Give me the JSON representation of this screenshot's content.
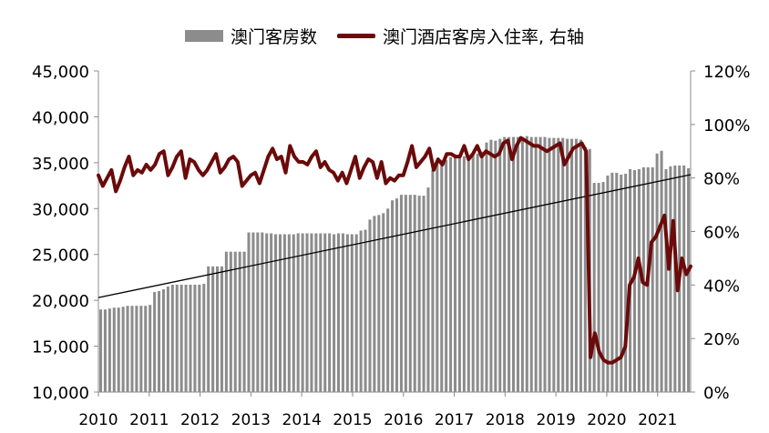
{
  "chart_data": {
    "type": "bar",
    "legend": [
      {
        "label": "澳门客房数",
        "color": "#8c8c8c"
      },
      {
        "label": "澳门酒店客房入住率, 右轴",
        "color": "#6b0a0a"
      }
    ],
    "x_ticks": [
      "2010",
      "2011",
      "2012",
      "2013",
      "2014",
      "2015",
      "2016",
      "2017",
      "2018",
      "2019",
      "2020",
      "2021"
    ],
    "y_left_ticks": [
      "10,000",
      "15,000",
      "20,000",
      "25,000",
      "30,000",
      "35,000",
      "40,000",
      "45,000"
    ],
    "y_right_ticks": [
      "0%",
      "20%",
      "40%",
      "60%",
      "80%",
      "100%",
      "120%"
    ],
    "ylim_left": [
      10000,
      45000
    ],
    "ylim_right": [
      0,
      120
    ],
    "x_range": [
      2010.0,
      2021.65
    ],
    "series": [
      {
        "name": "澳门客房数",
        "type": "bar",
        "axis": "left",
        "color": "#8c8c8c",
        "values": [
          19000,
          19000,
          19100,
          19200,
          19200,
          19300,
          19400,
          19400,
          19400,
          19400,
          19400,
          19500,
          20900,
          21000,
          21200,
          21500,
          21700,
          21700,
          21700,
          21700,
          21700,
          21700,
          21700,
          21800,
          23700,
          23700,
          23700,
          23700,
          25300,
          25300,
          25300,
          25300,
          25300,
          27400,
          27400,
          27400,
          27400,
          27300,
          27300,
          27200,
          27200,
          27200,
          27200,
          27200,
          27300,
          27300,
          27300,
          27300,
          27300,
          27300,
          27300,
          27300,
          27200,
          27300,
          27300,
          27200,
          27200,
          27200,
          27600,
          27700,
          28800,
          29200,
          29300,
          29500,
          30000,
          30900,
          31100,
          31500,
          31500,
          31500,
          31500,
          31400,
          31400,
          32300,
          34200,
          35000,
          35300,
          35300,
          35600,
          35700,
          35700,
          35700,
          35700,
          35800,
          36000,
          36200,
          37200,
          37500,
          37400,
          37600,
          37800,
          37800,
          37800,
          37800,
          37800,
          37900,
          37800,
          37800,
          37800,
          37800,
          37700,
          37700,
          37700,
          37700,
          37600,
          37600,
          37600,
          37500,
          36700,
          36500,
          32800,
          32800,
          32900,
          33600,
          33900,
          33900,
          33700,
          33800,
          34300,
          34200,
          34300,
          34500,
          34500,
          34500,
          36000,
          36300,
          34300,
          34600,
          34700,
          34700,
          34700,
          34400
        ]
      },
      {
        "name": "澳门酒店客房入住率, 右轴",
        "type": "line",
        "axis": "right",
        "color": "#6b0a0a",
        "values": [
          81,
          77,
          80,
          83,
          75,
          79,
          84,
          88,
          81,
          83,
          82,
          85,
          83,
          85,
          89,
          90,
          81,
          84,
          88,
          90,
          80,
          87,
          86,
          83,
          81,
          83,
          86,
          89,
          82,
          84,
          87,
          88,
          86,
          77,
          79,
          81,
          82,
          78,
          83,
          88,
          91,
          87,
          88,
          82,
          92,
          88,
          86,
          86,
          85,
          88,
          90,
          84,
          86,
          83,
          82,
          79,
          82,
          78,
          83,
          88,
          80,
          84,
          87,
          86,
          80,
          86,
          78,
          80,
          79,
          81,
          81,
          86,
          92,
          84,
          86,
          88,
          91,
          83,
          87,
          85,
          89,
          89,
          88,
          88,
          92,
          87,
          89,
          92,
          88,
          90,
          89,
          88,
          89,
          93,
          94,
          87,
          92,
          95,
          94,
          93,
          92,
          92,
          91,
          90,
          91,
          92,
          93,
          85,
          88,
          91,
          92,
          93,
          90,
          13,
          22,
          15,
          12,
          11,
          11,
          12,
          13,
          17,
          40,
          43,
          50,
          41,
          40,
          56,
          58,
          62,
          66,
          46,
          64,
          38,
          50,
          44,
          47
        ]
      },
      {
        "name": "",
        "type": "trendline",
        "axis": "left",
        "color": "#000000",
        "x": [
          2010.0,
          2021.65
        ],
        "values": [
          20300,
          33700
        ]
      }
    ],
    "grid": false
  }
}
